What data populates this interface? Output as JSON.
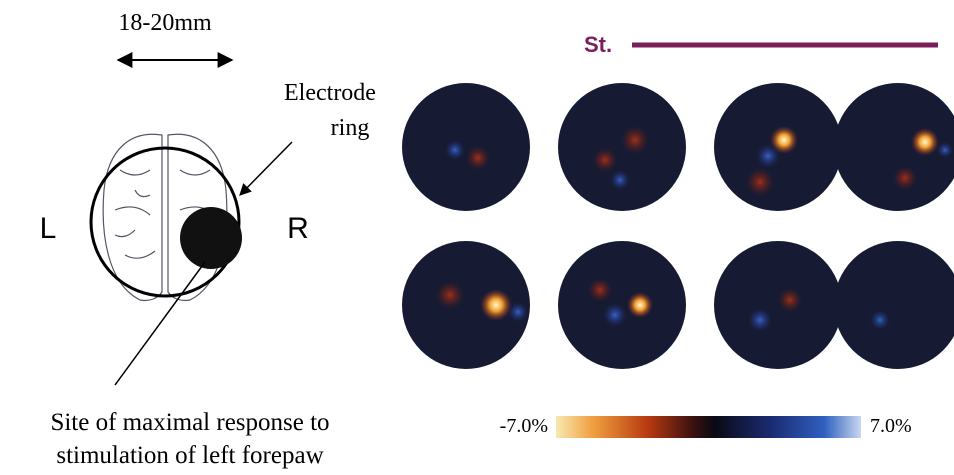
{
  "left_diagram": {
    "scale_label": "18-20mm",
    "electrode_label": [
      "Electrode",
      "ring"
    ],
    "left_side": "L",
    "right_side": "R",
    "caption": [
      "Site of maximal response to",
      "stimulation of left forepaw"
    ]
  },
  "right_panel": {
    "stimulus_label": "St.",
    "colorbar": {
      "min_label": "-7.0%",
      "max_label": "7.0%"
    }
  }
}
